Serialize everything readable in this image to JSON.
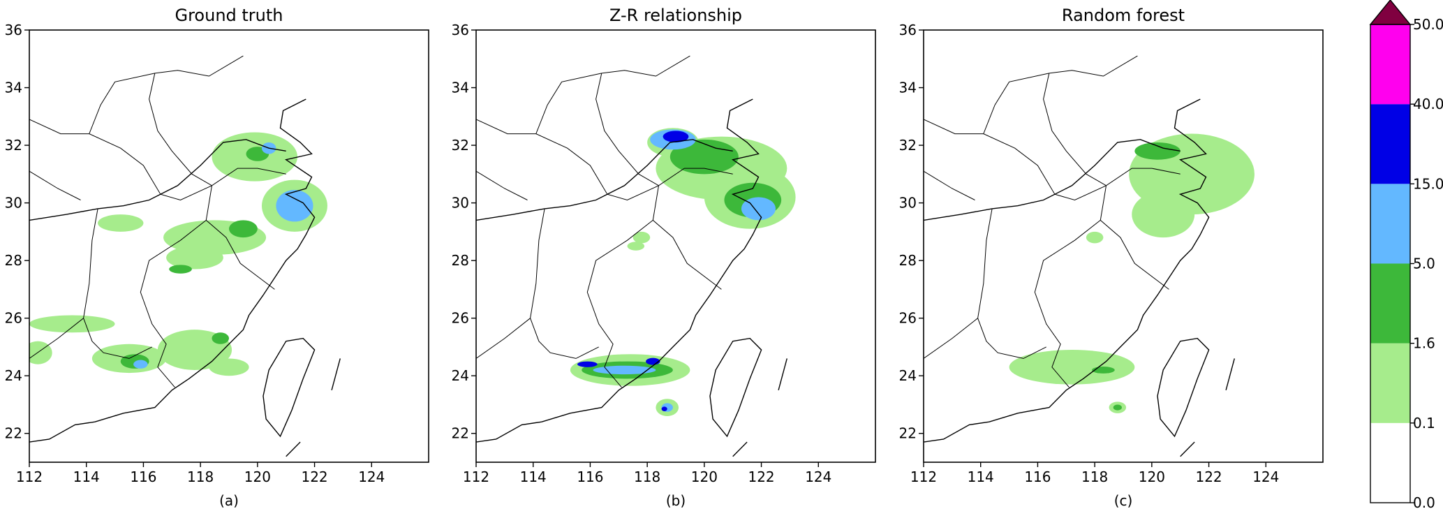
{
  "chart_data": {
    "type": "heatmap",
    "colorbar": {
      "levels": [
        "0.0",
        "0.1",
        "1.6",
        "5.0",
        "15.0",
        "40.0",
        "50.0"
      ],
      "colors": [
        "#ffffff",
        "#a6ec8c",
        "#3db83a",
        "#63b8ff",
        "#0000e6",
        "#ff00ee"
      ],
      "extend_max_color": "#800040"
    },
    "axes": {
      "xlim": [
        112,
        126
      ],
      "ylim": [
        21,
        36
      ],
      "xticks": [
        "112",
        "114",
        "116",
        "118",
        "120",
        "122",
        "124"
      ],
      "yticks": [
        "22",
        "24",
        "26",
        "28",
        "30",
        "32",
        "34",
        "36"
      ]
    },
    "panels": [
      {
        "title": "Ground truth",
        "caption": "(a)",
        "regions": [
          {
            "lon": 119.9,
            "lat": 31.6,
            "rx": 1.5,
            "ry": 0.85,
            "cls": 1
          },
          {
            "lon": 121.3,
            "lat": 29.9,
            "rx": 1.15,
            "ry": 0.9,
            "cls": 1
          },
          {
            "lon": 118.5,
            "lat": 28.8,
            "rx": 1.8,
            "ry": 0.6,
            "cls": 1
          },
          {
            "lon": 117.8,
            "lat": 28.1,
            "rx": 1.0,
            "ry": 0.4,
            "cls": 1
          },
          {
            "lon": 113.5,
            "lat": 25.8,
            "rx": 1.5,
            "ry": 0.3,
            "cls": 1
          },
          {
            "lon": 115.5,
            "lat": 24.6,
            "rx": 1.3,
            "ry": 0.5,
            "cls": 1
          },
          {
            "lon": 117.8,
            "lat": 24.9,
            "rx": 1.3,
            "ry": 0.7,
            "cls": 1
          },
          {
            "lon": 119.0,
            "lat": 24.3,
            "rx": 0.7,
            "ry": 0.3,
            "cls": 1
          },
          {
            "lon": 115.2,
            "lat": 29.3,
            "rx": 0.8,
            "ry": 0.3,
            "cls": 1
          },
          {
            "lon": 112.3,
            "lat": 24.8,
            "rx": 0.5,
            "ry": 0.4,
            "cls": 1
          },
          {
            "lon": 121.3,
            "lat": 29.9,
            "rx": 0.65,
            "ry": 0.55,
            "cls": 3
          },
          {
            "lon": 120.0,
            "lat": 31.7,
            "rx": 0.4,
            "ry": 0.25,
            "cls": 2
          },
          {
            "lon": 120.4,
            "lat": 31.9,
            "rx": 0.25,
            "ry": 0.2,
            "cls": 3
          },
          {
            "lon": 119.5,
            "lat": 29.1,
            "rx": 0.5,
            "ry": 0.3,
            "cls": 2
          },
          {
            "lon": 115.7,
            "lat": 24.5,
            "rx": 0.5,
            "ry": 0.25,
            "cls": 2
          },
          {
            "lon": 115.9,
            "lat": 24.4,
            "rx": 0.25,
            "ry": 0.15,
            "cls": 3
          },
          {
            "lon": 118.7,
            "lat": 25.3,
            "rx": 0.3,
            "ry": 0.2,
            "cls": 2
          },
          {
            "lon": 117.3,
            "lat": 27.7,
            "rx": 0.4,
            "ry": 0.15,
            "cls": 2
          }
        ]
      },
      {
        "title": "Z-R relationship",
        "caption": "(b)",
        "regions": [
          {
            "lon": 120.6,
            "lat": 31.2,
            "rx": 2.3,
            "ry": 1.1,
            "cls": 1
          },
          {
            "lon": 121.6,
            "lat": 30.2,
            "rx": 1.6,
            "ry": 1.1,
            "cls": 1
          },
          {
            "lon": 118.9,
            "lat": 32.1,
            "rx": 0.9,
            "ry": 0.5,
            "cls": 1
          },
          {
            "lon": 117.4,
            "lat": 24.2,
            "rx": 2.1,
            "ry": 0.55,
            "cls": 1
          },
          {
            "lon": 118.7,
            "lat": 22.9,
            "rx": 0.4,
            "ry": 0.3,
            "cls": 1
          },
          {
            "lon": 117.8,
            "lat": 28.8,
            "rx": 0.3,
            "ry": 0.2,
            "cls": 1
          },
          {
            "lon": 117.6,
            "lat": 28.5,
            "rx": 0.3,
            "ry": 0.15,
            "cls": 1
          },
          {
            "lon": 120.0,
            "lat": 31.6,
            "rx": 1.2,
            "ry": 0.6,
            "cls": 2
          },
          {
            "lon": 121.7,
            "lat": 30.1,
            "rx": 1.0,
            "ry": 0.6,
            "cls": 2
          },
          {
            "lon": 117.3,
            "lat": 24.2,
            "rx": 1.6,
            "ry": 0.3,
            "cls": 2
          },
          {
            "lon": 118.9,
            "lat": 32.2,
            "rx": 0.8,
            "ry": 0.35,
            "cls": 3
          },
          {
            "lon": 121.9,
            "lat": 29.8,
            "rx": 0.6,
            "ry": 0.4,
            "cls": 3
          },
          {
            "lon": 117.2,
            "lat": 24.2,
            "rx": 1.1,
            "ry": 0.15,
            "cls": 3
          },
          {
            "lon": 118.7,
            "lat": 22.9,
            "rx": 0.2,
            "ry": 0.15,
            "cls": 3
          },
          {
            "lon": 119.0,
            "lat": 32.3,
            "rx": 0.45,
            "ry": 0.2,
            "cls": 4
          },
          {
            "lon": 115.9,
            "lat": 24.4,
            "rx": 0.35,
            "ry": 0.1,
            "cls": 4
          },
          {
            "lon": 118.2,
            "lat": 24.5,
            "rx": 0.25,
            "ry": 0.12,
            "cls": 4
          },
          {
            "lon": 118.6,
            "lat": 22.85,
            "rx": 0.1,
            "ry": 0.08,
            "cls": 4
          }
        ]
      },
      {
        "title": "Random forest",
        "caption": "(c)",
        "regions": [
          {
            "lon": 121.4,
            "lat": 31.0,
            "rx": 2.2,
            "ry": 1.4,
            "cls": 1
          },
          {
            "lon": 120.4,
            "lat": 29.6,
            "rx": 1.1,
            "ry": 0.8,
            "cls": 1
          },
          {
            "lon": 117.2,
            "lat": 24.3,
            "rx": 2.2,
            "ry": 0.6,
            "cls": 1
          },
          {
            "lon": 118.8,
            "lat": 22.9,
            "rx": 0.3,
            "ry": 0.2,
            "cls": 1
          },
          {
            "lon": 118.0,
            "lat": 28.8,
            "rx": 0.3,
            "ry": 0.2,
            "cls": 1
          },
          {
            "lon": 120.2,
            "lat": 31.8,
            "rx": 0.8,
            "ry": 0.3,
            "cls": 2
          },
          {
            "lon": 118.3,
            "lat": 24.2,
            "rx": 0.4,
            "ry": 0.12,
            "cls": 2
          },
          {
            "lon": 118.8,
            "lat": 22.9,
            "rx": 0.15,
            "ry": 0.1,
            "cls": 2
          }
        ]
      }
    ]
  }
}
